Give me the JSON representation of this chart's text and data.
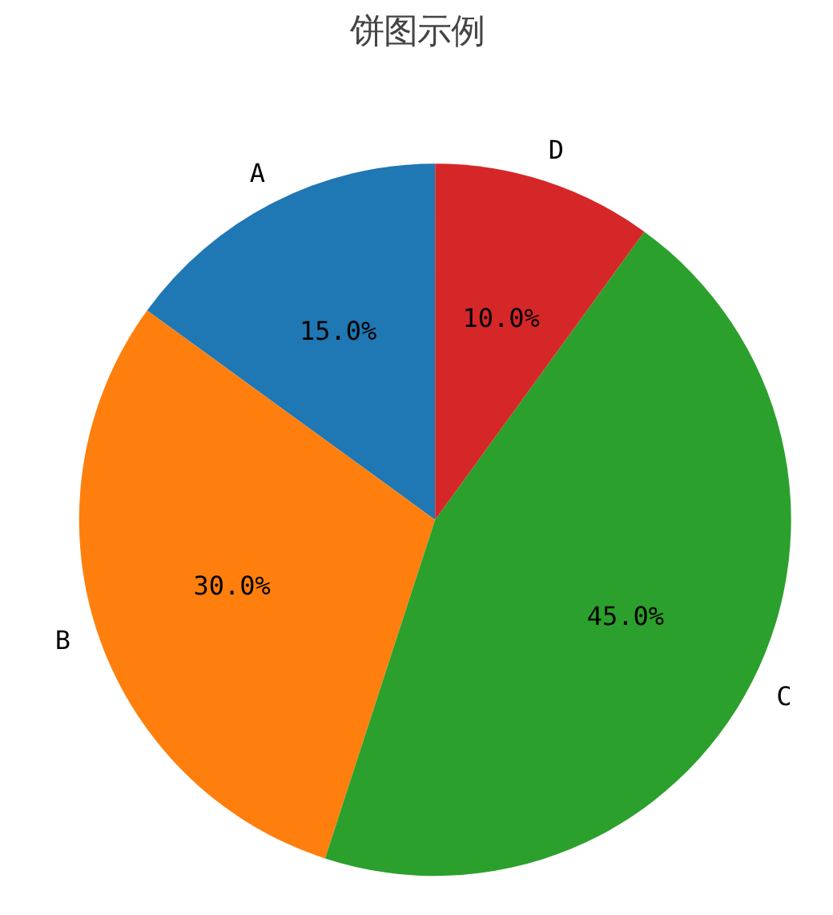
{
  "chart_data": {
    "type": "pie",
    "title": "饼图示例",
    "categories": [
      "A",
      "B",
      "C",
      "D"
    ],
    "values": [
      15,
      30,
      45,
      10
    ],
    "colors": [
      "#1f77b4",
      "#ff7f0e",
      "#2ca02c",
      "#d62728"
    ],
    "value_labels": [
      "15.0%",
      "30.0%",
      "45.0%",
      "10.0%"
    ]
  }
}
